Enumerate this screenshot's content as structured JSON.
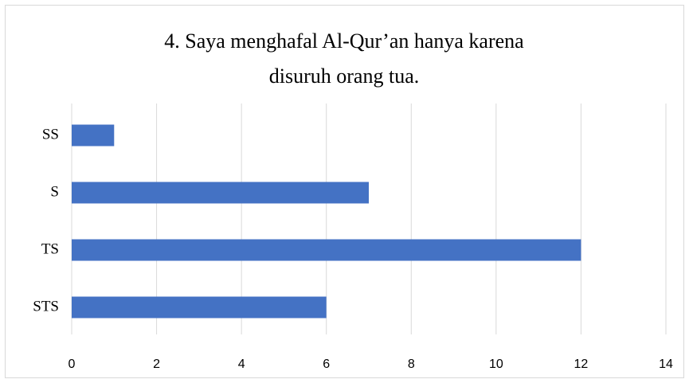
{
  "chart_data": {
    "type": "bar",
    "orientation": "horizontal",
    "title": "4. Saya menghafal Al-Qur’an hanya karena disuruh orang tua.",
    "categories": [
      "SS",
      "S",
      "TS",
      "STS"
    ],
    "values": [
      1,
      7,
      12,
      6
    ],
    "color": "#4472c4",
    "xlim": [
      0,
      14
    ],
    "xticks": [
      0,
      2,
      4,
      6,
      8,
      10,
      12,
      14
    ],
    "grid": true
  }
}
